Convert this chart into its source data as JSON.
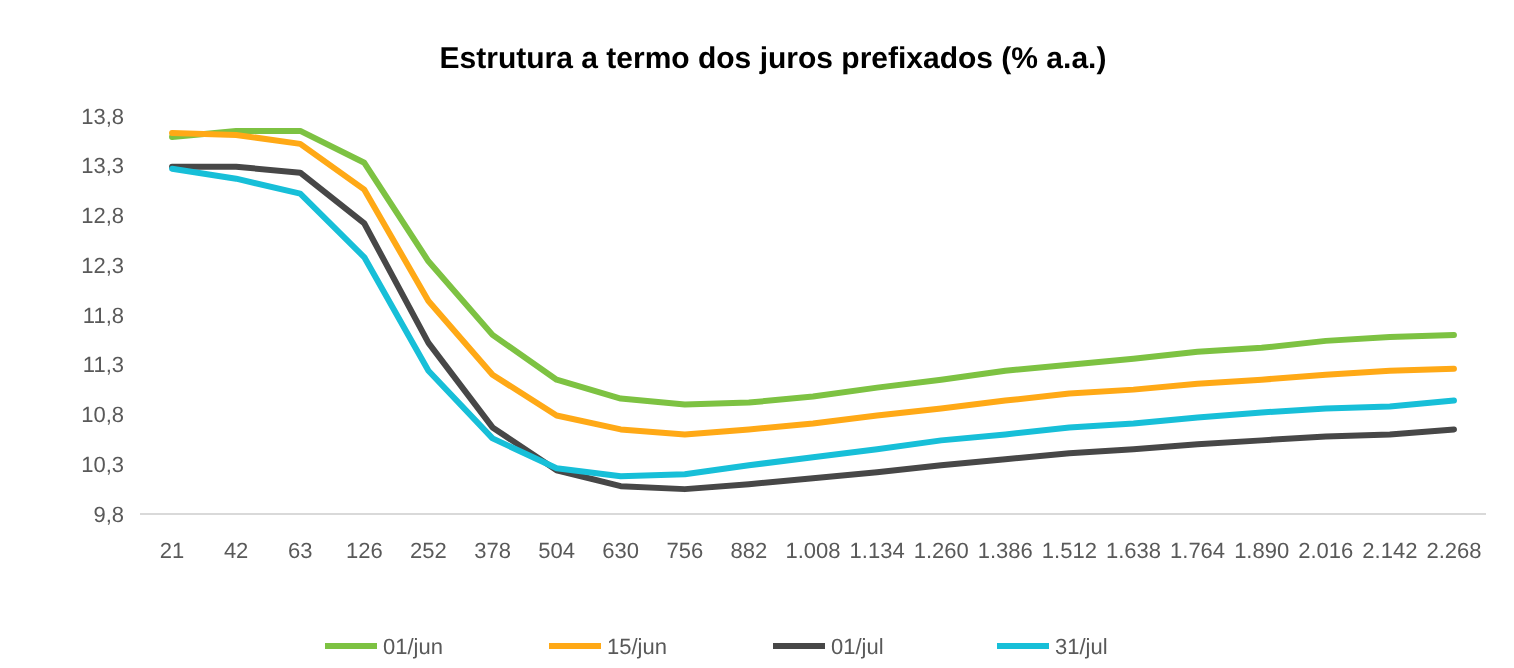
{
  "chart_data": {
    "type": "line",
    "title": "Estrutura a termo dos juros prefixados (% a.a.)",
    "categories": [
      "21",
      "42",
      "63",
      "126",
      "252",
      "378",
      "504",
      "630",
      "756",
      "882",
      "1.008",
      "1.134",
      "1.260",
      "1.386",
      "1.512",
      "1.638",
      "1.764",
      "1.890",
      "2.016",
      "2.142",
      "2.268"
    ],
    "series": [
      {
        "name": "01/jun",
        "color": "#7dc242",
        "values": [
          13.59,
          13.65,
          13.65,
          13.33,
          12.34,
          11.6,
          11.15,
          10.96,
          10.9,
          10.92,
          10.98,
          11.07,
          11.15,
          11.24,
          11.3,
          11.36,
          11.43,
          11.47,
          11.54,
          11.58,
          11.6
        ]
      },
      {
        "name": "15/jun",
        "color": "#ffa916",
        "values": [
          13.63,
          13.61,
          13.52,
          13.06,
          11.94,
          11.2,
          10.79,
          10.65,
          10.6,
          10.65,
          10.71,
          10.79,
          10.86,
          10.94,
          11.01,
          11.05,
          11.11,
          11.15,
          11.2,
          11.24,
          11.26
        ]
      },
      {
        "name": "01/jul",
        "color": "#474747",
        "values": [
          13.29,
          13.29,
          13.23,
          12.72,
          11.52,
          10.67,
          10.24,
          10.08,
          10.05,
          10.1,
          10.16,
          10.22,
          10.29,
          10.35,
          10.41,
          10.45,
          10.5,
          10.54,
          10.58,
          10.6,
          10.65
        ]
      },
      {
        "name": "31/jul",
        "color": "#17bfd8",
        "values": [
          13.27,
          13.17,
          13.02,
          12.38,
          11.24,
          10.56,
          10.26,
          10.18,
          10.2,
          10.29,
          10.37,
          10.45,
          10.54,
          10.6,
          10.67,
          10.71,
          10.77,
          10.82,
          10.86,
          10.88,
          10.94
        ]
      }
    ],
    "ylim": [
      9.8,
      13.8
    ],
    "yticks": [
      {
        "value": 9.8,
        "label": "9,8"
      },
      {
        "value": 10.3,
        "label": "10,3"
      },
      {
        "value": 10.8,
        "label": "10,8"
      },
      {
        "value": 11.3,
        "label": "11,3"
      },
      {
        "value": 11.8,
        "label": "11,8"
      },
      {
        "value": 12.3,
        "label": "12,3"
      },
      {
        "value": 12.8,
        "label": "12,8"
      },
      {
        "value": 13.3,
        "label": "13,3"
      },
      {
        "value": 13.8,
        "label": "13,8"
      }
    ],
    "grid": false,
    "legend": "bottom",
    "marker": "none",
    "line_style": "solid"
  }
}
